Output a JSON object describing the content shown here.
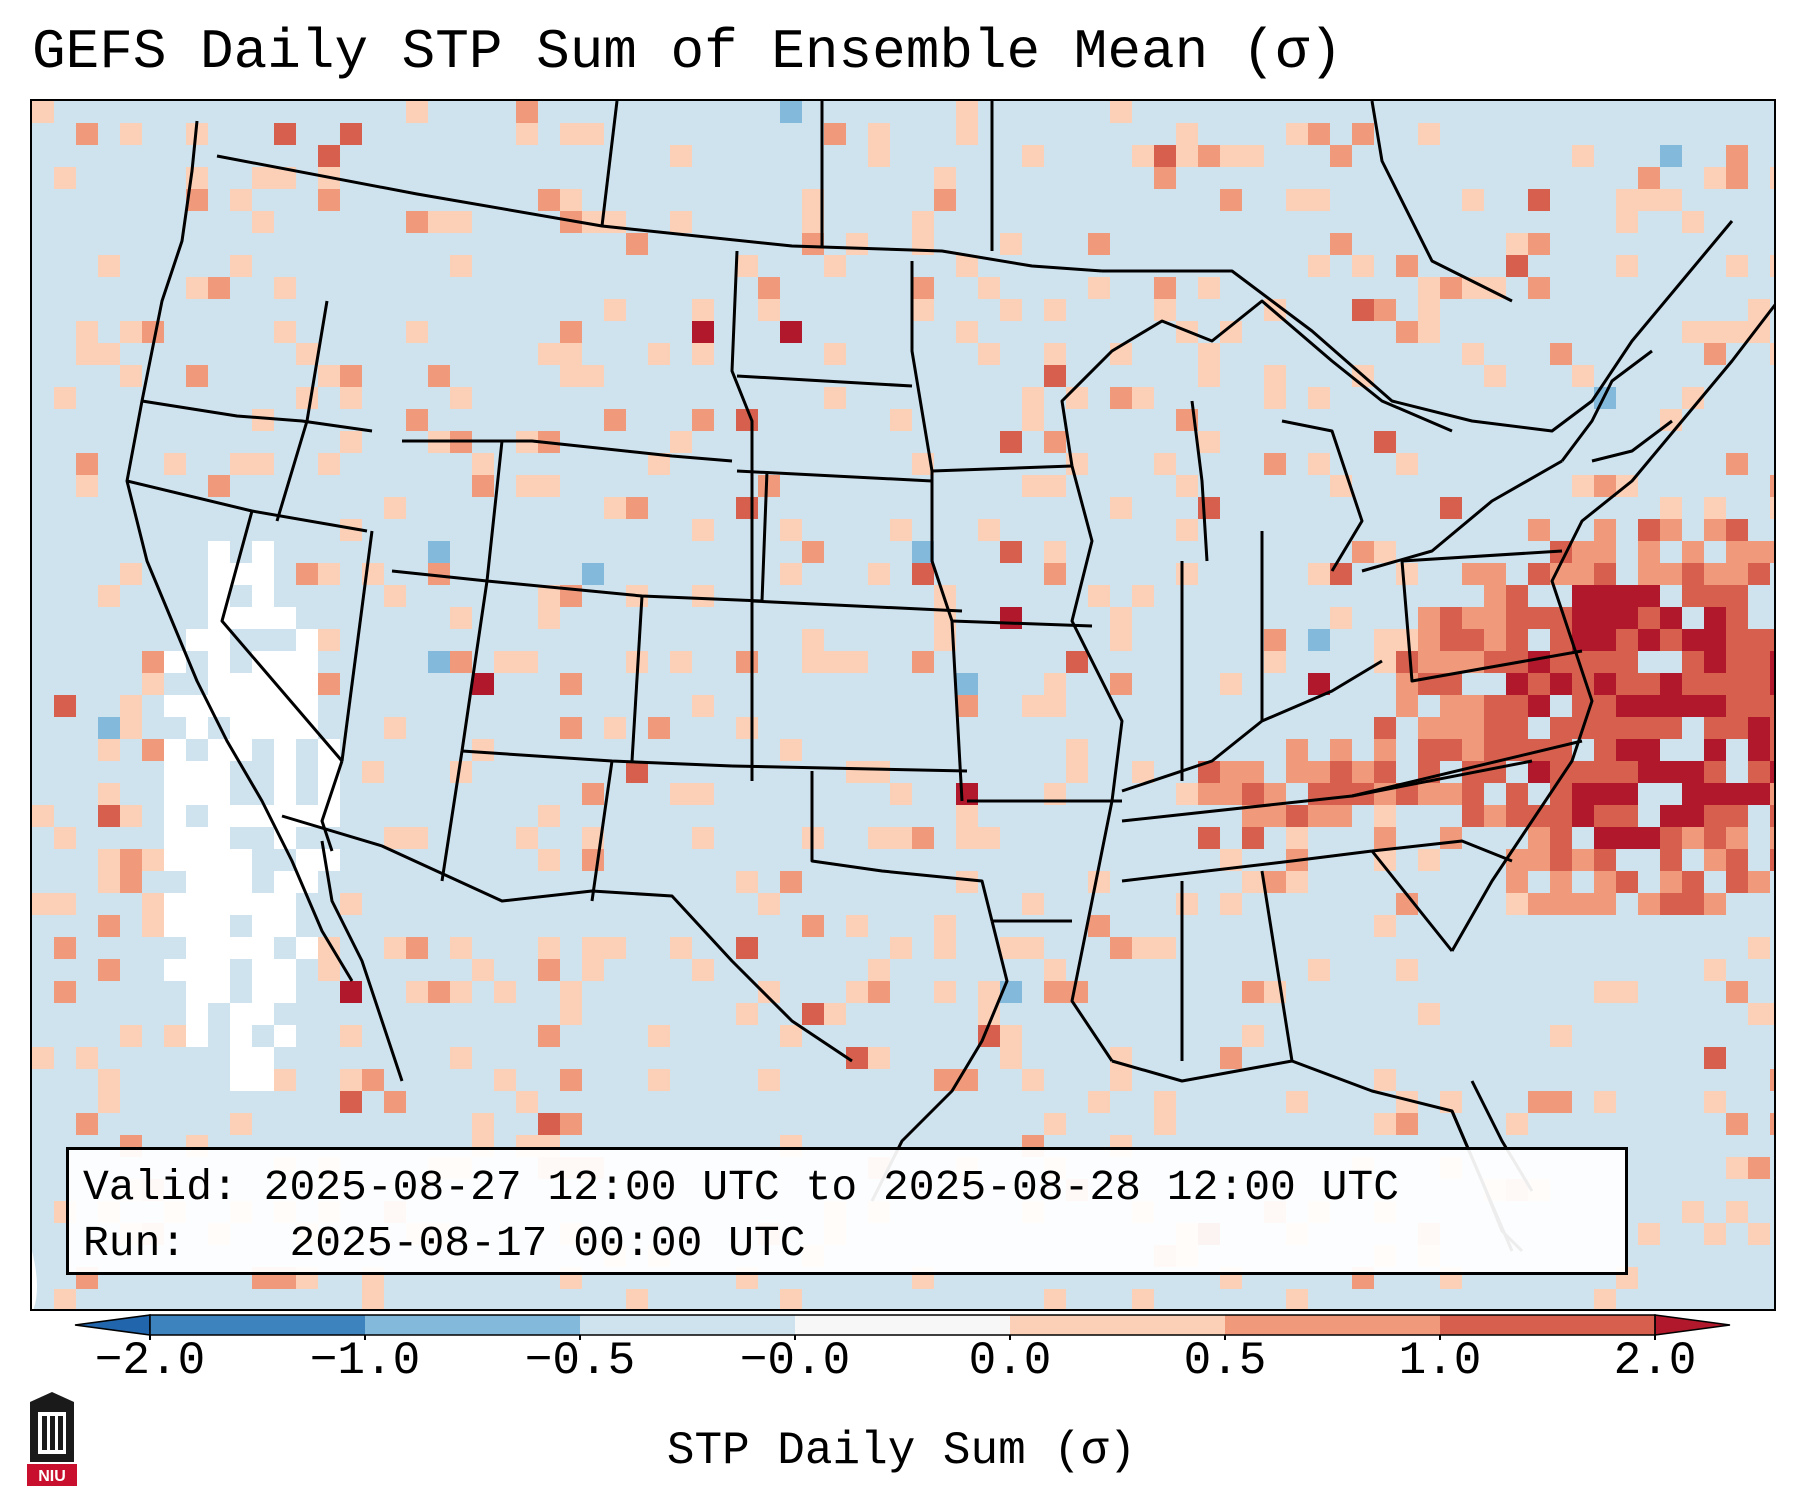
{
  "title": "GEFS Daily STP Sum of Ensemble Mean (σ)",
  "info": {
    "valid_label": "Valid:",
    "valid_value": "2025-08-27 12:00 UTC to 2025-08-28 12:00 UTC",
    "run_label": "Run:",
    "run_value": "2025-08-17 00:00 UTC"
  },
  "colorbar": {
    "label": "STP Daily Sum (σ)",
    "ticks": [
      "−2.0",
      "−1.0",
      "−0.5",
      "−0.0",
      "0.0",
      "0.5",
      "1.0",
      "2.0"
    ],
    "bins": [
      {
        "from": -2.0,
        "to": -1.0,
        "color": "#3d84bf"
      },
      {
        "from": -1.0,
        "to": -0.5,
        "color": "#83b9db"
      },
      {
        "from": -0.5,
        "to": -0.0,
        "color": "#cfe3ef"
      },
      {
        "from": -0.0,
        "to": 0.0,
        "color": "#f7f7f7"
      },
      {
        "from": 0.0,
        "to": 0.5,
        "color": "#fbd0b6"
      },
      {
        "from": 0.5,
        "to": 1.0,
        "color": "#f09a7b"
      },
      {
        "from": 1.0,
        "to": 2.0,
        "color": "#d6604d"
      }
    ],
    "under_color": "#2166ac",
    "over_color": "#b2182b"
  },
  "logo": {
    "text": "NIU",
    "color": "#c8102e"
  },
  "colors": {
    "background": "#cfe3ef",
    "neutral": "#f7f7f7",
    "light_red": "#fbd0b6",
    "mid_red": "#f09a7b",
    "red": "#d6604d",
    "dark_red": "#b2182b",
    "light_blue": "#83b9db",
    "border": "#000000"
  }
}
